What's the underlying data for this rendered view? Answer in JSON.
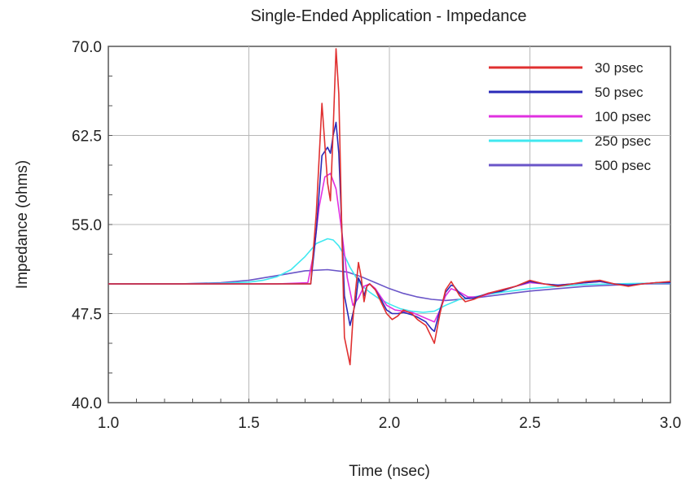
{
  "chart_data": {
    "type": "line",
    "title": "Single-Ended Application - Impedance",
    "xlabel": "Time (nsec)",
    "ylabel": "Impedance (ohms)",
    "xlim": [
      1.0,
      3.0
    ],
    "ylim": [
      40.0,
      70.0
    ],
    "xticks": [
      "1.0",
      "1.5",
      "2.0",
      "2.5",
      "3.0"
    ],
    "xtick_values": [
      1.0,
      1.5,
      2.0,
      2.5,
      3.0
    ],
    "yticks": [
      "40.0",
      "47.5",
      "55.0",
      "62.5",
      "70.0"
    ],
    "ytick_values": [
      40.0,
      47.5,
      55.0,
      62.5,
      70.0
    ],
    "grid": true,
    "legend_position": "top-right",
    "series": [
      {
        "name": "30 psec",
        "color": "#e03030",
        "x": [
          1.0,
          1.25,
          1.6,
          1.72,
          1.74,
          1.76,
          1.78,
          1.79,
          1.8,
          1.81,
          1.82,
          1.83,
          1.84,
          1.86,
          1.87,
          1.88,
          1.89,
          1.9,
          1.91,
          1.92,
          1.93,
          1.95,
          1.97,
          1.99,
          2.01,
          2.03,
          2.05,
          2.08,
          2.1,
          2.13,
          2.15,
          2.16,
          2.18,
          2.2,
          2.22,
          2.23,
          2.25,
          2.27,
          2.3,
          2.35,
          2.4,
          2.45,
          2.5,
          2.55,
          2.6,
          2.65,
          2.7,
          2.75,
          2.8,
          2.85,
          2.9,
          2.95,
          3.0
        ],
        "y": [
          50.0,
          50.0,
          50.0,
          50.0,
          56.0,
          65.2,
          58.5,
          57.0,
          63.0,
          69.8,
          66.0,
          55.0,
          45.5,
          43.2,
          47.0,
          49.5,
          51.8,
          50.5,
          48.5,
          49.8,
          50.0,
          49.5,
          48.5,
          47.5,
          47.0,
          47.3,
          47.8,
          47.5,
          47.0,
          46.5,
          45.5,
          45.0,
          47.5,
          49.5,
          50.2,
          49.8,
          49.0,
          48.5,
          48.7,
          49.2,
          49.5,
          49.8,
          50.3,
          50.0,
          49.8,
          50.0,
          50.2,
          50.3,
          50.0,
          49.8,
          50.0,
          50.1,
          50.2
        ]
      },
      {
        "name": "50 psec",
        "color": "#2a2ab8",
        "x": [
          1.0,
          1.25,
          1.6,
          1.72,
          1.74,
          1.76,
          1.78,
          1.79,
          1.8,
          1.81,
          1.82,
          1.83,
          1.84,
          1.86,
          1.87,
          1.88,
          1.89,
          1.9,
          1.91,
          1.92,
          1.93,
          1.95,
          1.97,
          1.99,
          2.01,
          2.03,
          2.05,
          2.08,
          2.1,
          2.13,
          2.15,
          2.16,
          2.18,
          2.2,
          2.22,
          2.23,
          2.25,
          2.27,
          2.3,
          2.35,
          2.4,
          2.45,
          2.5,
          2.55,
          2.6,
          2.65,
          2.7,
          2.75,
          2.8,
          2.85,
          2.9,
          2.95,
          3.0
        ],
        "y": [
          50.0,
          50.0,
          50.0,
          50.0,
          54.5,
          60.8,
          61.5,
          61.0,
          62.5,
          63.6,
          61.0,
          55.0,
          49.0,
          46.5,
          47.5,
          48.5,
          50.5,
          50.0,
          49.0,
          49.8,
          50.0,
          49.5,
          48.7,
          47.8,
          47.5,
          47.5,
          47.6,
          47.4,
          47.2,
          46.8,
          46.2,
          46.0,
          47.8,
          49.3,
          49.9,
          49.8,
          49.2,
          48.8,
          48.8,
          49.2,
          49.4,
          49.8,
          50.2,
          50.0,
          49.9,
          50.0,
          50.1,
          50.2,
          50.0,
          49.9,
          50.0,
          50.1,
          50.1
        ]
      },
      {
        "name": "100 psec",
        "color": "#e030e0",
        "x": [
          1.0,
          1.25,
          1.6,
          1.71,
          1.73,
          1.75,
          1.77,
          1.79,
          1.81,
          1.83,
          1.85,
          1.87,
          1.89,
          1.91,
          1.93,
          1.95,
          1.97,
          1.99,
          2.02,
          2.05,
          2.08,
          2.11,
          2.14,
          2.16,
          2.18,
          2.2,
          2.22,
          2.25,
          2.28,
          2.32,
          2.36,
          2.4,
          2.45,
          2.5,
          2.55,
          2.6,
          2.65,
          2.7,
          2.75,
          2.8,
          2.85,
          2.9,
          2.95,
          3.0
        ],
        "y": [
          50.0,
          50.0,
          50.0,
          50.1,
          52.5,
          56.5,
          59.0,
          59.3,
          58.0,
          54.5,
          50.5,
          48.2,
          48.8,
          49.8,
          50.0,
          49.6,
          48.9,
          48.2,
          47.8,
          47.7,
          47.6,
          47.3,
          47.0,
          46.8,
          47.8,
          49.0,
          49.6,
          49.3,
          48.9,
          48.9,
          49.2,
          49.5,
          49.8,
          50.1,
          50.0,
          49.9,
          50.0,
          50.1,
          50.2,
          50.0,
          49.9,
          50.0,
          50.1,
          50.1
        ]
      },
      {
        "name": "250 psec",
        "color": "#40e8f0",
        "x": [
          1.0,
          1.25,
          1.4,
          1.5,
          1.55,
          1.6,
          1.65,
          1.7,
          1.74,
          1.78,
          1.8,
          1.82,
          1.84,
          1.86,
          1.88,
          1.9,
          1.93,
          1.96,
          2.0,
          2.04,
          2.08,
          2.12,
          2.16,
          2.2,
          2.25,
          2.3,
          2.35,
          2.4,
          2.5,
          2.6,
          2.7,
          2.8,
          2.9,
          3.0
        ],
        "y": [
          50.0,
          50.0,
          50.05,
          50.15,
          50.3,
          50.6,
          51.2,
          52.3,
          53.4,
          53.8,
          53.7,
          53.2,
          52.4,
          51.4,
          50.6,
          49.9,
          49.3,
          48.8,
          48.3,
          47.9,
          47.7,
          47.6,
          47.7,
          48.2,
          48.7,
          48.9,
          49.1,
          49.3,
          49.6,
          49.8,
          49.95,
          50.0,
          50.05,
          50.05
        ]
      },
      {
        "name": "500 psec",
        "color": "#6a55c8",
        "x": [
          1.0,
          1.25,
          1.4,
          1.5,
          1.6,
          1.7,
          1.78,
          1.85,
          1.9,
          1.95,
          2.0,
          2.05,
          2.1,
          2.15,
          2.2,
          2.3,
          2.4,
          2.5,
          2.6,
          2.7,
          2.8,
          2.9,
          3.0
        ],
        "y": [
          50.0,
          50.0,
          50.1,
          50.3,
          50.7,
          51.1,
          51.2,
          51.0,
          50.6,
          50.1,
          49.6,
          49.2,
          48.9,
          48.7,
          48.6,
          48.8,
          49.1,
          49.4,
          49.6,
          49.8,
          49.9,
          50.0,
          50.0
        ]
      }
    ]
  }
}
